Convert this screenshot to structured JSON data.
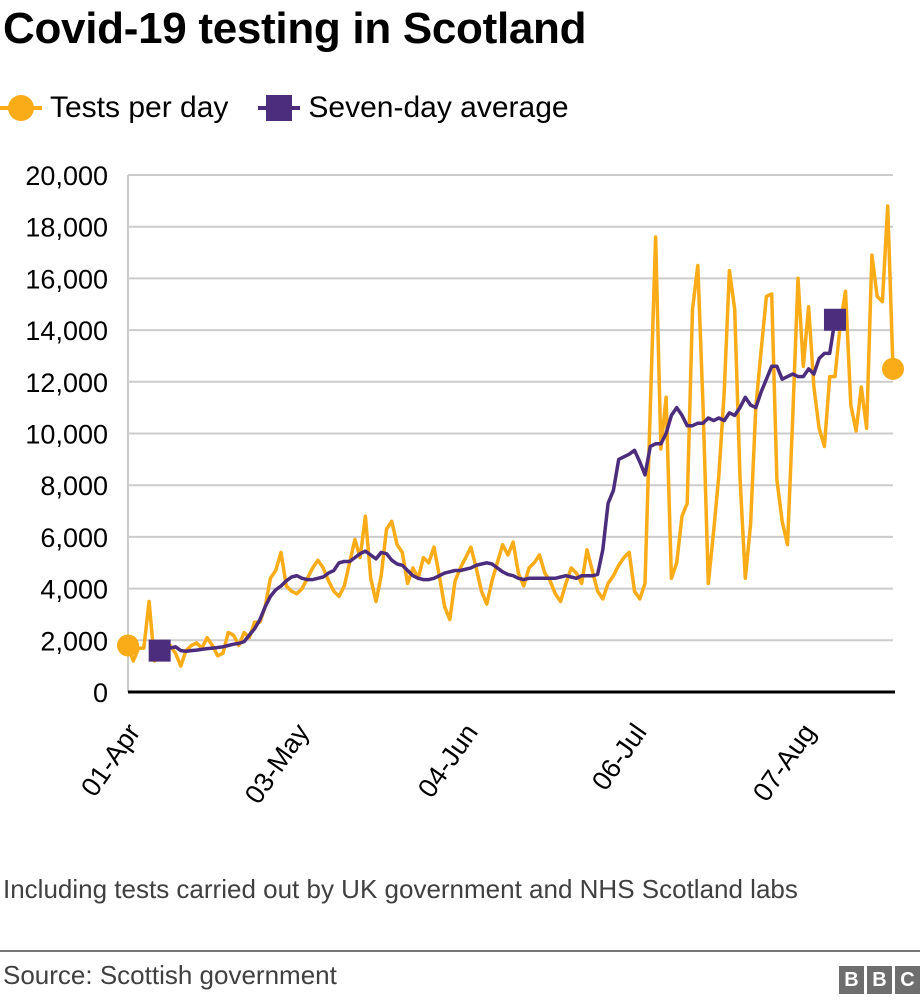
{
  "title": "Covid-19 testing in Scotland",
  "legend": [
    {
      "label": "Tests per day",
      "color": "#FAAB18",
      "marker": "circle"
    },
    {
      "label": "Seven-day average",
      "color": "#4C2C7D",
      "marker": "square"
    }
  ],
  "note": "Including tests carried out by UK government and NHS Scotland labs",
  "source": "Source: Scottish government",
  "logo": [
    "B",
    "B",
    "C"
  ],
  "chart_data": {
    "type": "line",
    "title": "Covid-19 testing in Scotland",
    "xlabel": "",
    "ylabel": "",
    "ylim": [
      0,
      20000
    ],
    "yticks": [
      0,
      2000,
      4000,
      6000,
      8000,
      10000,
      12000,
      14000,
      16000,
      18000,
      20000
    ],
    "ytick_labels": [
      "0",
      "2,000",
      "4,000",
      "6,000",
      "8,000",
      "10,000",
      "12,000",
      "14,000",
      "16,000",
      "18,000",
      "20,000"
    ],
    "x_start": "31-Mar",
    "x_end": "22-Aug",
    "xtick_labels": [
      "01-Apr",
      "03-May",
      "04-Jun",
      "06-Jul",
      "07-Aug"
    ],
    "xtick_day_index": [
      1,
      33,
      65,
      97,
      129
    ],
    "grid": true,
    "legend_position": "top-left",
    "series": [
      {
        "name": "Tests per day",
        "color": "#FAAB18",
        "start_day_index": 0,
        "values": [
          1800,
          1200,
          1700,
          1700,
          3500,
          1200,
          1400,
          1600,
          1800,
          1500,
          1000,
          1600,
          1800,
          1900,
          1700,
          2100,
          1800,
          1400,
          1500,
          2300,
          2200,
          1800,
          2300,
          2100,
          2700,
          2700,
          3300,
          4400,
          4700,
          5400,
          4100,
          3900,
          3800,
          4000,
          4400,
          4800,
          5100,
          4800,
          4300,
          3900,
          3700,
          4100,
          5000,
          5900,
          5200,
          6800,
          4400,
          3500,
          4500,
          6300,
          6600,
          5700,
          5400,
          4200,
          4800,
          4400,
          5200,
          5000,
          5600,
          4500,
          3300,
          2800,
          4300,
          4800,
          5200,
          5600,
          4800,
          3900,
          3400,
          4300,
          5000,
          5700,
          5300,
          5800,
          4600,
          4100,
          4800,
          5000,
          5300,
          4600,
          4300,
          3800,
          3500,
          4200,
          4800,
          4600,
          4200,
          5500,
          4700,
          3900,
          3600,
          4200,
          4500,
          4900,
          5200,
          5400,
          3900,
          3600,
          4200,
          11000,
          17600,
          9400,
          11400,
          4400,
          5000,
          6800,
          7300,
          14800,
          16500,
          11000,
          4200,
          6200,
          8400,
          11600,
          16300,
          14800,
          8300,
          4400,
          6500,
          11000,
          13200,
          15300,
          15400,
          8200,
          6600,
          5700,
          10700,
          16000,
          12600,
          14900,
          11800,
          10200,
          9500,
          12200,
          12200,
          14200,
          15500,
          11100,
          10100,
          11800,
          10200,
          16900,
          15300,
          15100,
          18800,
          12500
        ]
      },
      {
        "name": "Seven-day average",
        "color": "#4C2C7D",
        "start_day_index": 6,
        "values": [
          1600,
          1650,
          1700,
          1750,
          1600,
          1580,
          1600,
          1620,
          1650,
          1680,
          1700,
          1720,
          1750,
          1800,
          1850,
          1880,
          1950,
          2200,
          2450,
          2800,
          3300,
          3700,
          3950,
          4100,
          4300,
          4450,
          4500,
          4400,
          4350,
          4350,
          4400,
          4450,
          4600,
          4700,
          5000,
          5050,
          5050,
          5200,
          5350,
          5450,
          5300,
          5150,
          5400,
          5350,
          5100,
          4950,
          4900,
          4700,
          4500,
          4400,
          4350,
          4350,
          4400,
          4500,
          4600,
          4650,
          4700,
          4700,
          4750,
          4800,
          4900,
          4950,
          5000,
          4950,
          4800,
          4650,
          4550,
          4500,
          4400,
          4350,
          4400,
          4400,
          4400,
          4400,
          4400,
          4400,
          4450,
          4500,
          4450,
          4400,
          4500,
          4500,
          4500,
          4550,
          5500,
          7300,
          7800,
          9000,
          9100,
          9200,
          9350,
          8900,
          8400,
          9500,
          9600,
          9600,
          10000,
          10700,
          11000,
          10700,
          10300,
          10300,
          10400,
          10400,
          10600,
          10500,
          10600,
          10500,
          10800,
          10700,
          11000,
          11400,
          11100,
          11000,
          11600,
          12100,
          12600,
          12600,
          12100,
          12200,
          12300,
          12200,
          12200,
          12500,
          12300,
          12900,
          13100,
          13100,
          14400
        ]
      }
    ]
  }
}
